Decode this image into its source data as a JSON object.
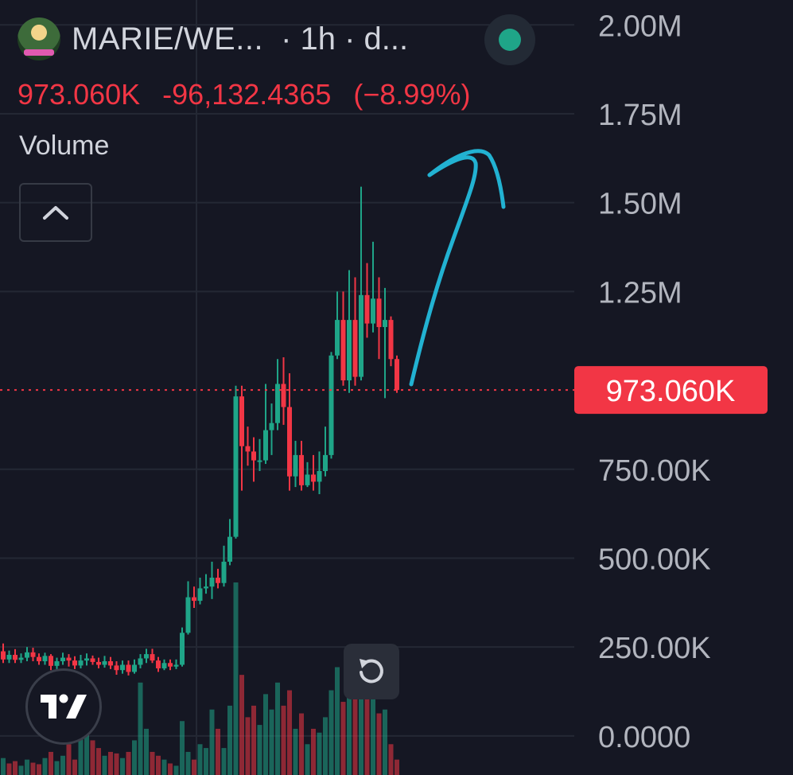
{
  "header": {
    "pair": "MARIE/WE...",
    "interval": "· 1h · d...",
    "price": "973.060K",
    "change": "-96,132.4365",
    "change_pct": "(−8.99%)",
    "volume_label": "Volume"
  },
  "colors": {
    "background": "#151723",
    "up": "#1fa588",
    "down": "#f23645",
    "annotation": "#22b2d2"
  },
  "icons": {
    "collapse": "chevron-up-icon",
    "logo": "tradingview-logo",
    "reset": "rotate-ccw-icon",
    "status": "live-status-dot"
  },
  "chart_data": {
    "type": "candlestick",
    "y_axis_ticks": [
      "2.00M",
      "1.75M",
      "1.50M",
      "1.25M",
      "750.00K",
      "500.00K",
      "250.00K",
      "0.0000"
    ],
    "y_tick_values": [
      2000000,
      1750000,
      1500000,
      1250000,
      750000,
      500000,
      250000,
      0
    ],
    "ylim": [
      -110000,
      2070000
    ],
    "last_price_value": 973060,
    "last_price_label": "973.060K",
    "grid": true,
    "candles": [
      [
        238000,
        215000,
        260000,
        205000
      ],
      [
        215000,
        228000,
        240000,
        205000
      ],
      [
        228000,
        214000,
        244000,
        205000
      ],
      [
        214000,
        220000,
        232000,
        205000
      ],
      [
        220000,
        235000,
        250000,
        210000
      ],
      [
        235000,
        222000,
        248000,
        210000
      ],
      [
        222000,
        210000,
        232000,
        200000
      ],
      [
        210000,
        225000,
        234000,
        200000
      ],
      [
        225000,
        197000,
        230000,
        185000
      ],
      [
        197000,
        210000,
        220000,
        188000
      ],
      [
        210000,
        220000,
        234000,
        200000
      ],
      [
        220000,
        212000,
        230000,
        195000
      ],
      [
        212000,
        198000,
        224000,
        188000
      ],
      [
        198000,
        212000,
        228000,
        190000
      ],
      [
        212000,
        218000,
        232000,
        198000
      ],
      [
        218000,
        208000,
        226000,
        200000
      ],
      [
        208000,
        200000,
        220000,
        190000
      ],
      [
        200000,
        210000,
        225000,
        192000
      ],
      [
        210000,
        198000,
        222000,
        188000
      ],
      [
        198000,
        185000,
        210000,
        172000
      ],
      [
        185000,
        200000,
        212000,
        175000
      ],
      [
        200000,
        180000,
        212000,
        170000
      ],
      [
        180000,
        200000,
        215000,
        175000
      ],
      [
        200000,
        218000,
        230000,
        190000
      ],
      [
        218000,
        230000,
        245000,
        205000
      ],
      [
        230000,
        212000,
        245000,
        205000
      ],
      [
        212000,
        190000,
        222000,
        180000
      ],
      [
        190000,
        205000,
        215000,
        185000
      ],
      [
        205000,
        195000,
        215000,
        185000
      ],
      [
        195000,
        200000,
        215000,
        188000
      ],
      [
        200000,
        290000,
        305000,
        195000
      ],
      [
        290000,
        390000,
        435000,
        285000
      ],
      [
        390000,
        380000,
        420000,
        360000
      ],
      [
        380000,
        415000,
        445000,
        370000
      ],
      [
        415000,
        420000,
        455000,
        400000
      ],
      [
        420000,
        445000,
        490000,
        385000
      ],
      [
        445000,
        430000,
        470000,
        415000
      ],
      [
        430000,
        490000,
        535000,
        420000
      ],
      [
        490000,
        560000,
        610000,
        480000
      ],
      [
        560000,
        955000,
        985000,
        555000
      ],
      [
        955000,
        815000,
        985000,
        690000
      ],
      [
        815000,
        800000,
        870000,
        760000
      ],
      [
        800000,
        775000,
        840000,
        715000
      ],
      [
        775000,
        775000,
        835000,
        745000
      ],
      [
        775000,
        860000,
        990000,
        765000
      ],
      [
        860000,
        880000,
        935000,
        790000
      ],
      [
        880000,
        990000,
        1060000,
        860000
      ],
      [
        990000,
        925000,
        1065000,
        875000
      ],
      [
        925000,
        730000,
        1020000,
        690000
      ],
      [
        730000,
        790000,
        830000,
        700000
      ],
      [
        790000,
        705000,
        830000,
        690000
      ],
      [
        705000,
        735000,
        770000,
        700000
      ],
      [
        735000,
        715000,
        790000,
        690000
      ],
      [
        715000,
        745000,
        800000,
        680000
      ],
      [
        745000,
        790000,
        870000,
        730000
      ],
      [
        790000,
        1070000,
        1080000,
        780000
      ],
      [
        1070000,
        1170000,
        1250000,
        1060000
      ],
      [
        1170000,
        1000000,
        1250000,
        985000
      ],
      [
        1000000,
        1170000,
        1310000,
        965000
      ],
      [
        1170000,
        1010000,
        1290000,
        985000
      ],
      [
        1010000,
        1240000,
        1545000,
        1000000
      ],
      [
        1240000,
        1160000,
        1330000,
        1120000
      ],
      [
        1160000,
        1230000,
        1390000,
        1135000
      ],
      [
        1230000,
        1150000,
        1290000,
        1060000
      ],
      [
        1150000,
        1170000,
        1260000,
        950000
      ],
      [
        1170000,
        1060000,
        1180000,
        1040000
      ],
      [
        1060000,
        973060,
        1070000,
        965000
      ]
    ],
    "volumes": [
      [
        22000,
        0
      ],
      [
        15000,
        1
      ],
      [
        18000,
        1
      ],
      [
        12000,
        0
      ],
      [
        20000,
        0
      ],
      [
        16000,
        1
      ],
      [
        14000,
        1
      ],
      [
        22000,
        0
      ],
      [
        30000,
        1
      ],
      [
        18000,
        0
      ],
      [
        25000,
        0
      ],
      [
        40000,
        1
      ],
      [
        20000,
        1
      ],
      [
        70000,
        0
      ],
      [
        60000,
        0
      ],
      [
        45000,
        1
      ],
      [
        35000,
        1
      ],
      [
        25000,
        0
      ],
      [
        30000,
        1
      ],
      [
        28000,
        1
      ],
      [
        22000,
        0
      ],
      [
        30000,
        1
      ],
      [
        45000,
        0
      ],
      [
        120000,
        0
      ],
      [
        60000,
        0
      ],
      [
        30000,
        1
      ],
      [
        25000,
        1
      ],
      [
        20000,
        0
      ],
      [
        15000,
        1
      ],
      [
        12000,
        0
      ],
      [
        70000,
        0
      ],
      [
        30000,
        0
      ],
      [
        20000,
        1
      ],
      [
        40000,
        0
      ],
      [
        35000,
        0
      ],
      [
        85000,
        0
      ],
      [
        60000,
        1
      ],
      [
        35000,
        0
      ],
      [
        90000,
        0
      ],
      [
        250000,
        0
      ],
      [
        130000,
        1
      ],
      [
        75000,
        1
      ],
      [
        90000,
        1
      ],
      [
        65000,
        0
      ],
      [
        105000,
        0
      ],
      [
        85000,
        0
      ],
      [
        120000,
        0
      ],
      [
        90000,
        1
      ],
      [
        110000,
        1
      ],
      [
        60000,
        0
      ],
      [
        80000,
        1
      ],
      [
        40000,
        0
      ],
      [
        60000,
        1
      ],
      [
        55000,
        0
      ],
      [
        75000,
        0
      ],
      [
        110000,
        0
      ],
      [
        140000,
        0
      ],
      [
        95000,
        1
      ],
      [
        125000,
        0
      ],
      [
        110000,
        1
      ],
      [
        130000,
        0
      ],
      [
        120000,
        1
      ],
      [
        110000,
        0
      ],
      [
        80000,
        1
      ],
      [
        85000,
        0
      ],
      [
        40000,
        1
      ],
      [
        20000,
        1
      ]
    ],
    "volume_max": 250000,
    "annotation": "hand-drawn upward arrow"
  }
}
